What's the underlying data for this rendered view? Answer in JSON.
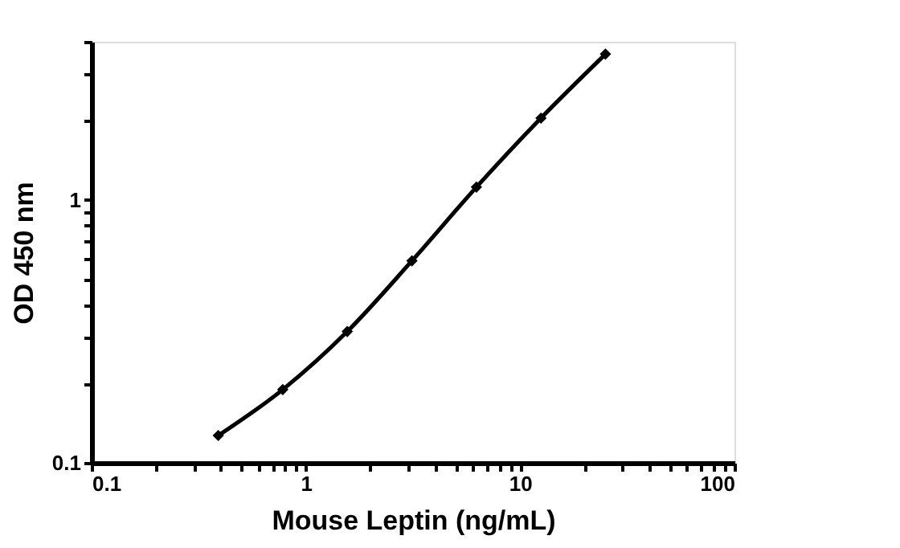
{
  "chart_data": {
    "type": "line",
    "xlabel": "Mouse Leptin (ng/mL)",
    "ylabel": "OD 450 nm",
    "x": [
      0.39,
      0.78,
      1.56,
      3.125,
      6.25,
      12.5,
      25
    ],
    "series": [
      {
        "color": "#000000",
        "values": [
          0.127,
          0.19,
          0.316,
          0.587,
          1.12,
          2.05,
          3.59
        ]
      }
    ],
    "log": "xy",
    "marker": "diamond",
    "line_style": "solid",
    "grid": false,
    "xlim": [
      0.1,
      100
    ],
    "ylim": [
      0.1,
      4
    ],
    "xticks": [
      0.1,
      {
        "value": 0.2,
        "label": null
      },
      {
        "value": 0.3,
        "label": null
      },
      {
        "value": 0.4,
        "label": null
      },
      {
        "value": 0.5,
        "label": null
      },
      {
        "value": 0.6,
        "label": null
      },
      {
        "value": 0.7,
        "label": null
      },
      {
        "value": 0.8,
        "label": null
      },
      {
        "value": 0.9,
        "label": null
      },
      1,
      {
        "value": 2,
        "label": null
      },
      {
        "value": 3,
        "label": null
      },
      {
        "value": 4,
        "label": null
      },
      {
        "value": 5,
        "label": null
      },
      {
        "value": 6,
        "label": null
      },
      {
        "value": 7,
        "label": null
      },
      {
        "value": 8,
        "label": null
      },
      {
        "value": 9,
        "label": null
      },
      10,
      {
        "value": 20,
        "label": null
      },
      {
        "value": 30,
        "label": null
      },
      {
        "value": 40,
        "label": null
      },
      {
        "value": 50,
        "label": null
      },
      {
        "value": 60,
        "label": null
      },
      {
        "value": 70,
        "label": null
      },
      {
        "value": 80,
        "label": null
      },
      {
        "value": 90,
        "label": null
      },
      100
    ],
    "yticks": [
      0.1,
      {
        "value": 0.2,
        "label": null
      },
      {
        "value": 0.3,
        "label": null
      },
      {
        "value": 0.4,
        "label": null
      },
      {
        "value": 0.5,
        "label": null
      },
      {
        "value": 0.6,
        "label": null
      },
      {
        "value": 0.7,
        "label": null
      },
      {
        "value": 0.8,
        "label": null
      },
      {
        "value": 0.9,
        "label": null
      },
      1,
      {
        "value": 2,
        "label": null
      },
      {
        "value": 3,
        "label": null
      },
      {
        "value": 4,
        "label": null
      }
    ]
  }
}
